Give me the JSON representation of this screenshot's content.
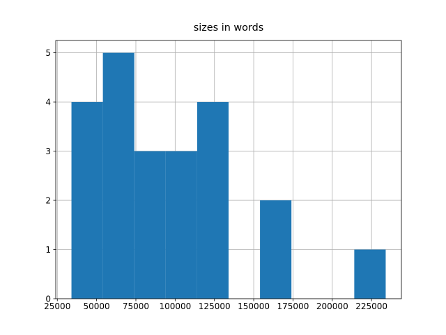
{
  "chart_data": {
    "type": "histogram",
    "title": "sizes in words",
    "bins": [
      34000,
      54000,
      74000,
      94000,
      114000,
      134000,
      154000,
      174000,
      194000,
      214000,
      234000
    ],
    "counts": [
      4,
      5,
      3,
      3,
      4,
      0,
      2,
      0,
      0,
      1
    ],
    "color": "#1f77b4",
    "xlim": [
      24000,
      244000
    ],
    "xticks": [
      25000,
      50000,
      75000,
      100000,
      125000,
      150000,
      175000,
      200000,
      225000
    ],
    "ylim": [
      0,
      5.25
    ],
    "yticks": [
      0,
      1,
      2,
      3,
      4,
      5
    ],
    "grid": true
  }
}
